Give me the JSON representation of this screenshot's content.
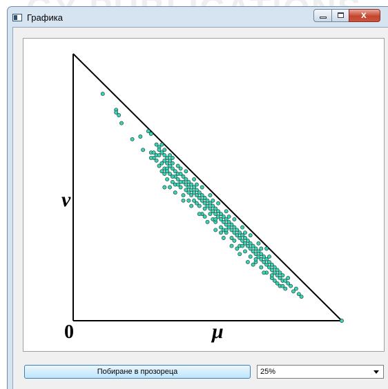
{
  "watermark": "GY PUBLICATIONS",
  "window": {
    "title": "Графика",
    "app_icon": "window-app-icon",
    "controls": {
      "minimize_icon": "minimize-icon",
      "maximize_icon": "maximize-icon",
      "close_icon": "close-icon",
      "close_glyph": "x"
    }
  },
  "plot": {
    "labels": {
      "origin": "0",
      "x_axis": "μ",
      "y_axis": "ν"
    },
    "colors": {
      "point_fill": "#3fd1b3",
      "point_stroke": "#1c4f44",
      "line": "#000000"
    }
  },
  "chart_data": {
    "type": "scatter",
    "title": "",
    "xlabel": "μ",
    "ylabel": "ν",
    "xlim": [
      0,
      1
    ],
    "ylim": [
      0,
      1
    ],
    "grid": false,
    "boundary": "triangle with vertices (0,0), (1,0), (0,1)",
    "series": [
      {
        "points": [
          [
            0.11,
            0.85
          ],
          [
            0.16,
            0.79
          ],
          [
            0.16,
            0.78
          ],
          [
            0.17,
            0.77
          ],
          [
            0.18,
            0.74
          ],
          [
            0.22,
            0.68
          ],
          [
            0.25,
            0.69
          ],
          [
            0.26,
            0.64
          ],
          [
            0.28,
            0.71
          ],
          [
            0.29,
            0.7
          ],
          [
            0.32,
            0.65
          ],
          [
            0.33,
            0.66
          ],
          [
            0.31,
            0.62
          ],
          [
            0.29,
            0.63
          ],
          [
            0.3,
            0.61
          ],
          [
            0.32,
            0.64
          ],
          [
            0.29,
            0.61
          ],
          [
            0.3,
            0.63
          ],
          [
            0.32,
            0.62
          ],
          [
            0.33,
            0.63
          ],
          [
            0.34,
            0.6
          ],
          [
            0.34,
            0.62
          ],
          [
            0.35,
            0.61
          ],
          [
            0.36,
            0.6
          ],
          [
            0.35,
            0.59
          ],
          [
            0.36,
            0.62
          ],
          [
            0.33,
            0.59
          ],
          [
            0.31,
            0.6
          ],
          [
            0.32,
            0.58
          ],
          [
            0.34,
            0.57
          ],
          [
            0.35,
            0.57
          ],
          [
            0.36,
            0.58
          ],
          [
            0.37,
            0.59
          ],
          [
            0.37,
            0.57
          ],
          [
            0.36,
            0.55
          ],
          [
            0.35,
            0.53
          ],
          [
            0.34,
            0.5
          ],
          [
            0.33,
            0.56
          ],
          [
            0.34,
            0.55
          ],
          [
            0.38,
            0.56
          ],
          [
            0.38,
            0.54
          ],
          [
            0.39,
            0.55
          ],
          [
            0.4,
            0.57
          ],
          [
            0.4,
            0.55
          ],
          [
            0.39,
            0.53
          ],
          [
            0.38,
            0.51
          ],
          [
            0.37,
            0.52
          ],
          [
            0.36,
            0.5
          ],
          [
            0.41,
            0.54
          ],
          [
            0.41,
            0.52
          ],
          [
            0.4,
            0.5
          ],
          [
            0.42,
            0.53
          ],
          [
            0.42,
            0.51
          ],
          [
            0.42,
            0.49
          ],
          [
            0.43,
            0.52
          ],
          [
            0.43,
            0.5
          ],
          [
            0.44,
            0.51
          ],
          [
            0.44,
            0.49
          ],
          [
            0.43,
            0.48
          ],
          [
            0.41,
            0.47
          ],
          [
            0.44,
            0.47
          ],
          [
            0.45,
            0.5
          ],
          [
            0.45,
            0.48
          ],
          [
            0.46,
            0.49
          ],
          [
            0.46,
            0.47
          ],
          [
            0.45,
            0.45
          ],
          [
            0.47,
            0.48
          ],
          [
            0.47,
            0.46
          ],
          [
            0.48,
            0.47
          ],
          [
            0.48,
            0.45
          ],
          [
            0.46,
            0.44
          ],
          [
            0.47,
            0.43
          ],
          [
            0.49,
            0.46
          ],
          [
            0.49,
            0.44
          ],
          [
            0.5,
            0.45
          ],
          [
            0.5,
            0.43
          ],
          [
            0.49,
            0.42
          ],
          [
            0.48,
            0.4
          ],
          [
            0.51,
            0.44
          ],
          [
            0.51,
            0.42
          ],
          [
            0.52,
            0.43
          ],
          [
            0.52,
            0.41
          ],
          [
            0.51,
            0.4
          ],
          [
            0.53,
            0.42
          ],
          [
            0.53,
            0.4
          ],
          [
            0.52,
            0.38
          ],
          [
            0.54,
            0.41
          ],
          [
            0.54,
            0.39
          ],
          [
            0.55,
            0.4
          ],
          [
            0.55,
            0.38
          ],
          [
            0.53,
            0.37
          ],
          [
            0.56,
            0.39
          ],
          [
            0.56,
            0.37
          ],
          [
            0.55,
            0.35
          ],
          [
            0.57,
            0.38
          ],
          [
            0.57,
            0.36
          ],
          [
            0.58,
            0.37
          ],
          [
            0.58,
            0.35
          ],
          [
            0.56,
            0.34
          ],
          [
            0.59,
            0.36
          ],
          [
            0.59,
            0.34
          ],
          [
            0.57,
            0.33
          ],
          [
            0.6,
            0.35
          ],
          [
            0.6,
            0.33
          ],
          [
            0.61,
            0.34
          ],
          [
            0.61,
            0.32
          ],
          [
            0.59,
            0.31
          ],
          [
            0.62,
            0.33
          ],
          [
            0.62,
            0.31
          ],
          [
            0.6,
            0.3
          ],
          [
            0.63,
            0.32
          ],
          [
            0.63,
            0.3
          ],
          [
            0.64,
            0.31
          ],
          [
            0.64,
            0.29
          ],
          [
            0.62,
            0.28
          ],
          [
            0.65,
            0.3
          ],
          [
            0.65,
            0.28
          ],
          [
            0.66,
            0.29
          ],
          [
            0.66,
            0.27
          ],
          [
            0.64,
            0.26
          ],
          [
            0.67,
            0.28
          ],
          [
            0.67,
            0.26
          ],
          [
            0.68,
            0.27
          ],
          [
            0.68,
            0.25
          ],
          [
            0.66,
            0.24
          ],
          [
            0.69,
            0.26
          ],
          [
            0.69,
            0.24
          ],
          [
            0.7,
            0.25
          ],
          [
            0.7,
            0.23
          ],
          [
            0.68,
            0.22
          ],
          [
            0.71,
            0.24
          ],
          [
            0.71,
            0.22
          ],
          [
            0.72,
            0.23
          ],
          [
            0.72,
            0.21
          ],
          [
            0.7,
            0.2
          ],
          [
            0.73,
            0.22
          ],
          [
            0.73,
            0.2
          ],
          [
            0.74,
            0.21
          ],
          [
            0.74,
            0.19
          ],
          [
            0.72,
            0.18
          ],
          [
            0.75,
            0.2
          ],
          [
            0.75,
            0.18
          ],
          [
            0.76,
            0.19
          ],
          [
            0.76,
            0.17
          ],
          [
            0.74,
            0.16
          ],
          [
            0.77,
            0.18
          ],
          [
            0.77,
            0.16
          ],
          [
            0.78,
            0.17
          ],
          [
            0.78,
            0.15
          ],
          [
            0.76,
            0.14
          ],
          [
            0.79,
            0.15
          ],
          [
            0.8,
            0.14
          ],
          [
            0.81,
            0.13
          ],
          [
            0.79,
            0.12
          ],
          [
            0.82,
            0.11
          ],
          [
            0.83,
            0.12
          ],
          [
            0.84,
            0.1
          ],
          [
            0.85,
            0.09
          ],
          [
            0.72,
            0.27
          ],
          [
            0.69,
            0.29
          ],
          [
            0.66,
            0.32
          ],
          [
            0.63,
            0.35
          ],
          [
            0.6,
            0.38
          ],
          [
            0.57,
            0.41
          ],
          [
            0.54,
            0.44
          ],
          [
            0.51,
            0.47
          ],
          [
            0.48,
            0.5
          ],
          [
            0.45,
            0.53
          ],
          [
            0.42,
            0.56
          ],
          [
            0.39,
            0.58
          ],
          [
            0.37,
            0.61
          ],
          [
            0.34,
            0.64
          ],
          [
            0.31,
            0.66
          ],
          [
            0.47,
            0.4
          ],
          [
            0.5,
            0.37
          ],
          [
            0.53,
            0.34
          ],
          [
            0.56,
            0.31
          ],
          [
            0.59,
            0.28
          ],
          [
            0.62,
            0.25
          ],
          [
            0.65,
            0.22
          ],
          [
            0.44,
            0.43
          ],
          [
            0.41,
            0.45
          ],
          [
            0.38,
            0.48
          ],
          [
            0.55,
            0.33
          ],
          [
            0.61,
            0.27
          ],
          [
            0.67,
            0.21
          ],
          [
            0.71,
            0.18
          ],
          [
            0.75,
            0.15
          ],
          [
            0.8,
            0.16
          ],
          [
            0.77,
            0.13
          ],
          [
            0.73,
            0.24
          ],
          [
            0.7,
            0.27
          ],
          [
            0.64,
            0.33
          ],
          [
            0.58,
            0.39
          ],
          [
            0.52,
            0.45
          ],
          [
            0.46,
            0.51
          ],
          [
            0.4,
            0.52
          ],
          [
            0.43,
            0.45
          ],
          [
            0.49,
            0.39
          ],
          [
            0.35,
            0.56
          ],
          [
            0.37,
            0.54
          ],
          [
            0.39,
            0.51
          ],
          [
            0.53,
            0.38
          ],
          [
            0.57,
            0.34
          ],
          [
            0.63,
            0.28
          ],
          [
            0.68,
            0.23
          ],
          [
            0.74,
            0.17
          ],
          [
            0.78,
            0.13
          ],
          [
            1.0,
            0.0
          ]
        ]
      }
    ]
  },
  "controls": {
    "fit_button_label": "Побиране в прозореца",
    "zoom": {
      "selected": "25%",
      "arrow_icon": "chevron-down-icon"
    }
  }
}
